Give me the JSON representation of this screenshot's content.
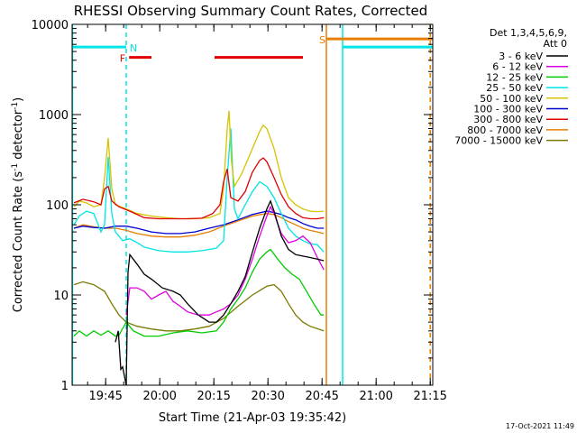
{
  "chart_data": {
    "type": "line",
    "title": "RHESSI Observing Summary Count Rates, Corrected",
    "xlabel": "Start Time (21-Apr-03 19:35:42)",
    "ylabel_main": "Corrected Count Rate (s",
    "ylabel_sup1": "-1",
    "ylabel_mid": " detector",
    "ylabel_sup2": "-1",
    "ylabel_end": ")",
    "yscale": "log",
    "ylim": [
      1,
      10000
    ],
    "xlim_minutes": [
      0,
      100
    ],
    "x_ticks": [
      {
        "label": "19:45",
        "minutes": 9.3
      },
      {
        "label": "20:00",
        "minutes": 24.3
      },
      {
        "label": "20:15",
        "minutes": 39.3
      },
      {
        "label": "20:30",
        "minutes": 54.3
      },
      {
        "label": "20:45",
        "minutes": 69.3
      },
      {
        "label": "21:00",
        "minutes": 84.3
      },
      {
        "label": "21:15",
        "minutes": 99.3
      }
    ],
    "y_ticks": [
      {
        "label": "1",
        "value": 1
      },
      {
        "label": "10",
        "value": 10
      },
      {
        "label": "100",
        "value": 100
      },
      {
        "label": "1000",
        "value": 1000
      },
      {
        "label": "10000",
        "value": 10000
      }
    ],
    "legend_header_1": "Det 1,3,4,5,6,9,",
    "legend_header_2": "Att 0",
    "footer_date": "17-Oct-2021 11:49",
    "flag_labels": {
      "night": "N",
      "flare": "F",
      "saa": "S"
    },
    "flag_bars": [
      {
        "flag": "night",
        "color": "#00e5e5",
        "y": 5600,
        "from": 0,
        "to": 15
      },
      {
        "flag": "flare",
        "color": "#e00000",
        "y": 4300,
        "from": 15.8,
        "to": 22
      },
      {
        "flag": "flare",
        "color": "#e00000",
        "y": 4300,
        "from": 39.5,
        "to": 64
      },
      {
        "flag": "saa",
        "color": "#e67e00",
        "y": 6900,
        "from": 70.5,
        "to": 100
      },
      {
        "flag": "night",
        "color": "#00e5e5",
        "y": 5600,
        "from": 75,
        "to": 100
      }
    ],
    "vlines": [
      {
        "color": "#00e5e5",
        "x": 0.1,
        "dashed": false
      },
      {
        "color": "#00e5e5",
        "x": 15,
        "dashed": true
      },
      {
        "color": "#e67e00",
        "x": 70.5,
        "dashed": false
      },
      {
        "color": "#00e5e5",
        "x": 75,
        "dashed": false
      },
      {
        "color": "#e67e00",
        "x": 99.3,
        "dashed": true
      }
    ],
    "series": [
      {
        "name": "3 - 6 keV",
        "color": "#000000",
        "points": [
          [
            12,
            3
          ],
          [
            12.8,
            4
          ],
          [
            13.5,
            1.5
          ],
          [
            14,
            1.6
          ],
          [
            15,
            1
          ],
          [
            15.5,
            18
          ],
          [
            16,
            28
          ],
          [
            18,
            22
          ],
          [
            20,
            17
          ],
          [
            22,
            15
          ],
          [
            25,
            12
          ],
          [
            28,
            11
          ],
          [
            30,
            10
          ],
          [
            32,
            8
          ],
          [
            35,
            6
          ],
          [
            38,
            5
          ],
          [
            40,
            5
          ],
          [
            42,
            6
          ],
          [
            44,
            8
          ],
          [
            46,
            11
          ],
          [
            48,
            16
          ],
          [
            50,
            30
          ],
          [
            52,
            55
          ],
          [
            54,
            90
          ],
          [
            55,
            110
          ],
          [
            56,
            85
          ],
          [
            58,
            45
          ],
          [
            60,
            32
          ],
          [
            62,
            28
          ],
          [
            64,
            27
          ],
          [
            66,
            26
          ],
          [
            68,
            25
          ],
          [
            69.8,
            24
          ]
        ]
      },
      {
        "name": "6 - 12 keV",
        "color": "#e000e0",
        "points": [
          [
            15,
            6
          ],
          [
            16,
            12
          ],
          [
            18,
            12
          ],
          [
            20,
            11
          ],
          [
            22,
            9
          ],
          [
            24,
            10
          ],
          [
            26,
            11
          ],
          [
            28,
            8.5
          ],
          [
            30,
            7.5
          ],
          [
            32,
            6.5
          ],
          [
            35,
            6
          ],
          [
            38,
            6
          ],
          [
            40,
            6.5
          ],
          [
            42,
            7
          ],
          [
            44,
            8
          ],
          [
            46,
            10
          ],
          [
            48,
            15
          ],
          [
            50,
            25
          ],
          [
            52,
            45
          ],
          [
            54,
            75
          ],
          [
            55,
            95
          ],
          [
            56,
            80
          ],
          [
            58,
            48
          ],
          [
            60,
            38
          ],
          [
            62,
            40
          ],
          [
            64,
            45
          ],
          [
            66,
            38
          ],
          [
            68,
            26
          ],
          [
            69.8,
            19
          ]
        ]
      },
      {
        "name": "12 - 25 keV",
        "color": "#00cc00",
        "points": [
          [
            0.5,
            3.5
          ],
          [
            2,
            4
          ],
          [
            4,
            3.5
          ],
          [
            6,
            4
          ],
          [
            8,
            3.6
          ],
          [
            10,
            4
          ],
          [
            12,
            3.5
          ],
          [
            13,
            3.6
          ],
          [
            15,
            5
          ],
          [
            17,
            4
          ],
          [
            20,
            3.5
          ],
          [
            24,
            3.5
          ],
          [
            28,
            3.8
          ],
          [
            32,
            4
          ],
          [
            36,
            3.8
          ],
          [
            40,
            4
          ],
          [
            42,
            5
          ],
          [
            44,
            7
          ],
          [
            46,
            9
          ],
          [
            48,
            12
          ],
          [
            50,
            18
          ],
          [
            52,
            25
          ],
          [
            54,
            30
          ],
          [
            55,
            32
          ],
          [
            57,
            25
          ],
          [
            59,
            20
          ],
          [
            61,
            17
          ],
          [
            63,
            15
          ],
          [
            65,
            11
          ],
          [
            67,
            8
          ],
          [
            69,
            6
          ],
          [
            69.8,
            6
          ]
        ]
      },
      {
        "name": "25 - 50 keV",
        "color": "#00e5e5",
        "points": [
          [
            0.5,
            60
          ],
          [
            2,
            75
          ],
          [
            4,
            85
          ],
          [
            6,
            80
          ],
          [
            8,
            50
          ],
          [
            9,
            60
          ],
          [
            10,
            340
          ],
          [
            11,
            80
          ],
          [
            12,
            50
          ],
          [
            14,
            40
          ],
          [
            16,
            42
          ],
          [
            18,
            38
          ],
          [
            20,
            34
          ],
          [
            24,
            31
          ],
          [
            28,
            30
          ],
          [
            32,
            30
          ],
          [
            36,
            31
          ],
          [
            40,
            33
          ],
          [
            42,
            40
          ],
          [
            43,
            200
          ],
          [
            44,
            700
          ],
          [
            45,
            90
          ],
          [
            46,
            70
          ],
          [
            48,
            100
          ],
          [
            50,
            140
          ],
          [
            52,
            180
          ],
          [
            54,
            160
          ],
          [
            56,
            120
          ],
          [
            58,
            80
          ],
          [
            60,
            55
          ],
          [
            62,
            45
          ],
          [
            64,
            40
          ],
          [
            66,
            37
          ],
          [
            68,
            36
          ],
          [
            69.8,
            30
          ]
        ]
      },
      {
        "name": "50 - 100 keV",
        "color": "#d4c400",
        "points": [
          [
            0.5,
            95
          ],
          [
            2,
            110
          ],
          [
            4,
            105
          ],
          [
            6,
            95
          ],
          [
            8,
            100
          ],
          [
            9,
            200
          ],
          [
            10,
            550
          ],
          [
            11,
            150
          ],
          [
            12,
            100
          ],
          [
            15,
            90
          ],
          [
            18,
            80
          ],
          [
            22,
            75
          ],
          [
            26,
            72
          ],
          [
            30,
            70
          ],
          [
            34,
            70
          ],
          [
            38,
            72
          ],
          [
            41,
            80
          ],
          [
            42,
            150
          ],
          [
            43,
            700
          ],
          [
            43.5,
            1100
          ],
          [
            44.2,
            300
          ],
          [
            45,
            160
          ],
          [
            47,
            220
          ],
          [
            50,
            420
          ],
          [
            52,
            650
          ],
          [
            53,
            760
          ],
          [
            54,
            700
          ],
          [
            56,
            420
          ],
          [
            58,
            200
          ],
          [
            60,
            120
          ],
          [
            62,
            100
          ],
          [
            64,
            90
          ],
          [
            66,
            85
          ],
          [
            68,
            84
          ],
          [
            69.8,
            85
          ]
        ]
      },
      {
        "name": "100 - 300 keV",
        "color": "#0000d0",
        "points": [
          [
            0.5,
            55
          ],
          [
            3,
            58
          ],
          [
            6,
            56
          ],
          [
            9,
            55
          ],
          [
            12,
            58
          ],
          [
            15,
            58
          ],
          [
            18,
            55
          ],
          [
            22,
            50
          ],
          [
            26,
            48
          ],
          [
            30,
            48
          ],
          [
            34,
            50
          ],
          [
            38,
            55
          ],
          [
            42,
            60
          ],
          [
            46,
            68
          ],
          [
            50,
            78
          ],
          [
            54,
            85
          ],
          [
            56,
            82
          ],
          [
            58,
            78
          ],
          [
            60,
            72
          ],
          [
            62,
            68
          ],
          [
            64,
            62
          ],
          [
            66,
            58
          ],
          [
            68,
            55
          ],
          [
            69.8,
            55
          ]
        ]
      },
      {
        "name": "300 - 800 keV",
        "color": "#e00000",
        "points": [
          [
            0.5,
            105
          ],
          [
            3,
            115
          ],
          [
            6,
            108
          ],
          [
            8,
            100
          ],
          [
            9,
            150
          ],
          [
            10,
            160
          ],
          [
            11,
            110
          ],
          [
            13,
            95
          ],
          [
            16,
            85
          ],
          [
            20,
            72
          ],
          [
            24,
            70
          ],
          [
            28,
            70
          ],
          [
            32,
            70
          ],
          [
            36,
            71
          ],
          [
            39,
            80
          ],
          [
            41,
            100
          ],
          [
            42,
            180
          ],
          [
            43,
            250
          ],
          [
            44,
            120
          ],
          [
            46,
            110
          ],
          [
            48,
            140
          ],
          [
            50,
            230
          ],
          [
            52,
            310
          ],
          [
            53,
            330
          ],
          [
            54,
            300
          ],
          [
            56,
            200
          ],
          [
            58,
            130
          ],
          [
            60,
            95
          ],
          [
            62,
            80
          ],
          [
            64,
            72
          ],
          [
            66,
            70
          ],
          [
            68,
            70
          ],
          [
            69.8,
            72
          ]
        ]
      },
      {
        "name": "800 - 7000 keV",
        "color": "#e67e00",
        "points": [
          [
            0.5,
            55
          ],
          [
            3,
            60
          ],
          [
            6,
            57
          ],
          [
            9,
            55
          ],
          [
            12,
            55
          ],
          [
            15,
            52
          ],
          [
            18,
            48
          ],
          [
            22,
            45
          ],
          [
            26,
            44
          ],
          [
            30,
            44
          ],
          [
            34,
            46
          ],
          [
            38,
            50
          ],
          [
            42,
            58
          ],
          [
            46,
            66
          ],
          [
            50,
            75
          ],
          [
            54,
            80
          ],
          [
            56,
            78
          ],
          [
            58,
            72
          ],
          [
            60,
            65
          ],
          [
            62,
            60
          ],
          [
            64,
            55
          ],
          [
            66,
            52
          ],
          [
            68,
            50
          ],
          [
            69.8,
            48
          ]
        ]
      },
      {
        "name": "7000 - 15000 keV",
        "color": "#7a7a00",
        "points": [
          [
            0.5,
            13
          ],
          [
            3,
            14
          ],
          [
            6,
            13
          ],
          [
            9,
            11
          ],
          [
            11,
            8
          ],
          [
            13,
            6
          ],
          [
            15,
            5
          ],
          [
            18,
            4.5
          ],
          [
            22,
            4.2
          ],
          [
            26,
            4
          ],
          [
            30,
            4
          ],
          [
            34,
            4.2
          ],
          [
            38,
            4.5
          ],
          [
            42,
            5.5
          ],
          [
            46,
            7.5
          ],
          [
            50,
            10
          ],
          [
            54,
            12.5
          ],
          [
            56,
            13
          ],
          [
            58,
            11
          ],
          [
            60,
            8
          ],
          [
            62,
            6
          ],
          [
            64,
            5
          ],
          [
            66,
            4.5
          ],
          [
            69.8,
            4
          ]
        ]
      }
    ]
  }
}
